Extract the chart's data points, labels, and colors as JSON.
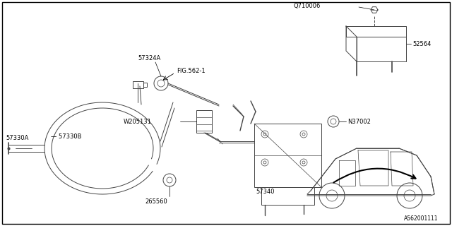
{
  "bg_color": "#ffffff",
  "border_color": "#000000",
  "line_color": "#444444",
  "label_color": "#000000",
  "diagram_code": "A562001111",
  "figsize": [
    6.4,
    3.2
  ],
  "dpi": 100,
  "xlim": [
    0,
    640
  ],
  "ylim": [
    0,
    320
  ]
}
